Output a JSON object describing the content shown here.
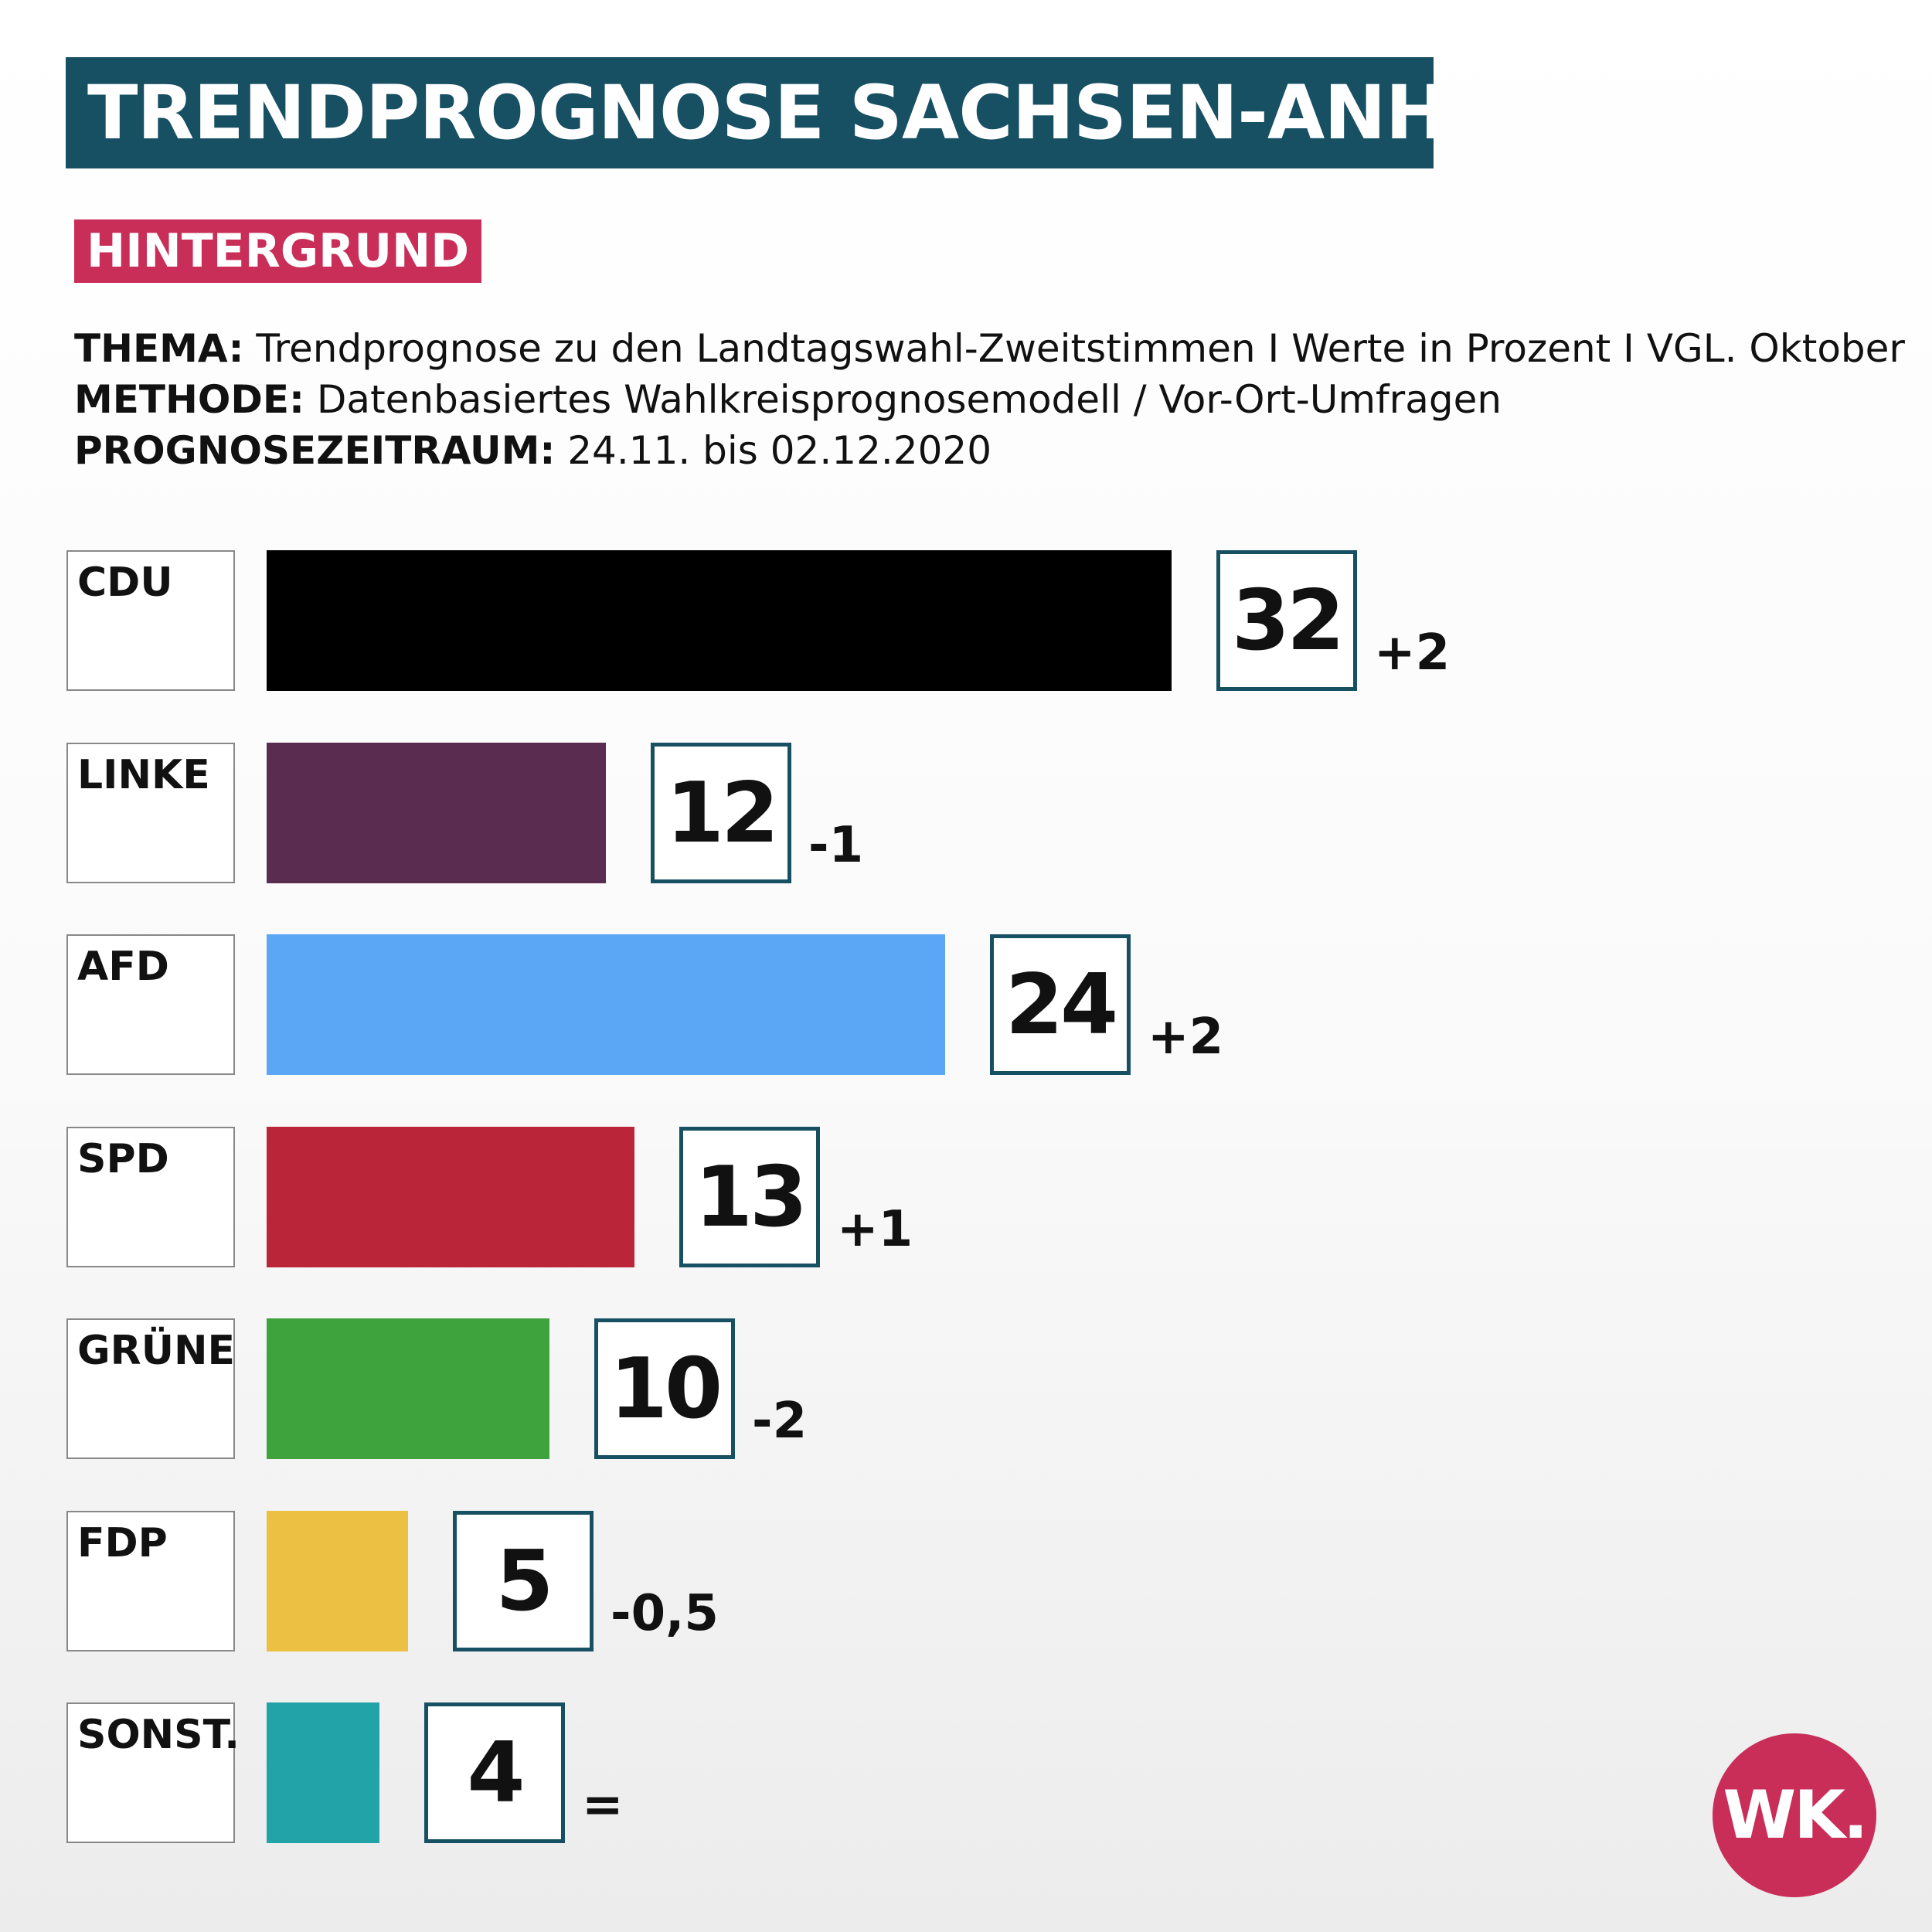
{
  "header": {
    "title": "TRENDPROGNOSE SACHSEN-ANHALT.",
    "tag": "HINTERGRUND"
  },
  "info": {
    "thema_label": "THEMA:",
    "thema_text": " Trendprognose zu den Landtagswahl-Zweitstimmen I Werte in Prozent I VGL. Oktober",
    "methode_label": "METHODE:",
    "methode_text": " Datenbasiertes Wahlkreisprognosemodell / Vor-Ort-Umfragen",
    "zeitraum_label": "PROGNOSEZEITRAUM:",
    "zeitraum_text": " 24.11. bis 02.12.2020"
  },
  "chart_data": {
    "type": "bar",
    "orientation": "horizontal",
    "categories": [
      "CDU",
      "LINKE",
      "AFD",
      "SPD",
      "GRÜNE",
      "FDP",
      "SONST."
    ],
    "values": [
      32,
      12,
      24,
      13,
      10,
      5,
      4
    ],
    "value_labels": [
      "32",
      "12",
      "24",
      "13",
      "10",
      "5",
      "4"
    ],
    "changes": [
      "+2",
      "-1",
      "+2",
      "+1",
      "-2",
      "-0,5",
      "="
    ],
    "colors": [
      "#000000",
      "#5a2d50",
      "#5ba6f5",
      "#bb2539",
      "#3ea33c",
      "#ecc043",
      "#22a3a8"
    ],
    "title": "",
    "xlabel": "",
    "ylabel": "",
    "grid": false,
    "legend": "none"
  },
  "logo": {
    "text": "WK."
  }
}
